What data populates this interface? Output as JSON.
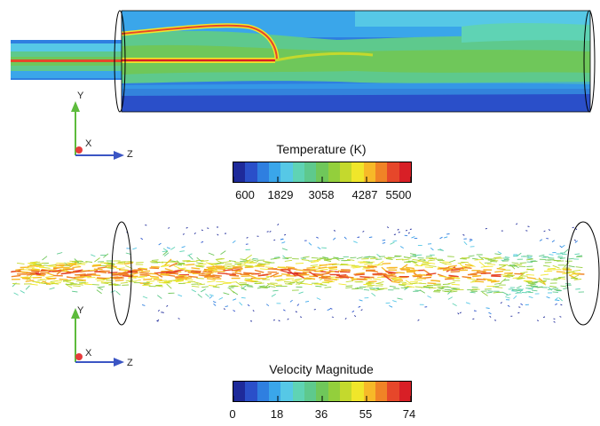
{
  "temperature_panel": {
    "colorbar": {
      "title": "Temperature (K)",
      "tick_labels": [
        "600",
        "1829",
        "3058",
        "4287",
        "5500"
      ],
      "colors": [
        "#1e2a9a",
        "#2a4fc9",
        "#2f7fe0",
        "#3aa6ea",
        "#56c8e6",
        "#5fd3b4",
        "#5ec98d",
        "#6fc75a",
        "#93cf3c",
        "#c4d92d",
        "#f0e62a",
        "#f7b928",
        "#f08326",
        "#e6472a",
        "#d81f26"
      ]
    },
    "axes": {
      "x": "X",
      "y": "Y",
      "z": "Z"
    }
  },
  "velocity_panel": {
    "colorbar": {
      "title": "Velocity Magnitude",
      "tick_labels": [
        "0",
        "18",
        "36",
        "55",
        "74"
      ],
      "colors": [
        "#1e2a9a",
        "#2a4fc9",
        "#2f7fe0",
        "#3aa6ea",
        "#56c8e6",
        "#5fd3b4",
        "#5ec98d",
        "#6fc75a",
        "#93cf3c",
        "#c4d92d",
        "#f0e62a",
        "#f7b928",
        "#f08326",
        "#e6472a",
        "#d81f26"
      ]
    },
    "axes": {
      "x": "X",
      "y": "Y",
      "z": "Z"
    }
  }
}
